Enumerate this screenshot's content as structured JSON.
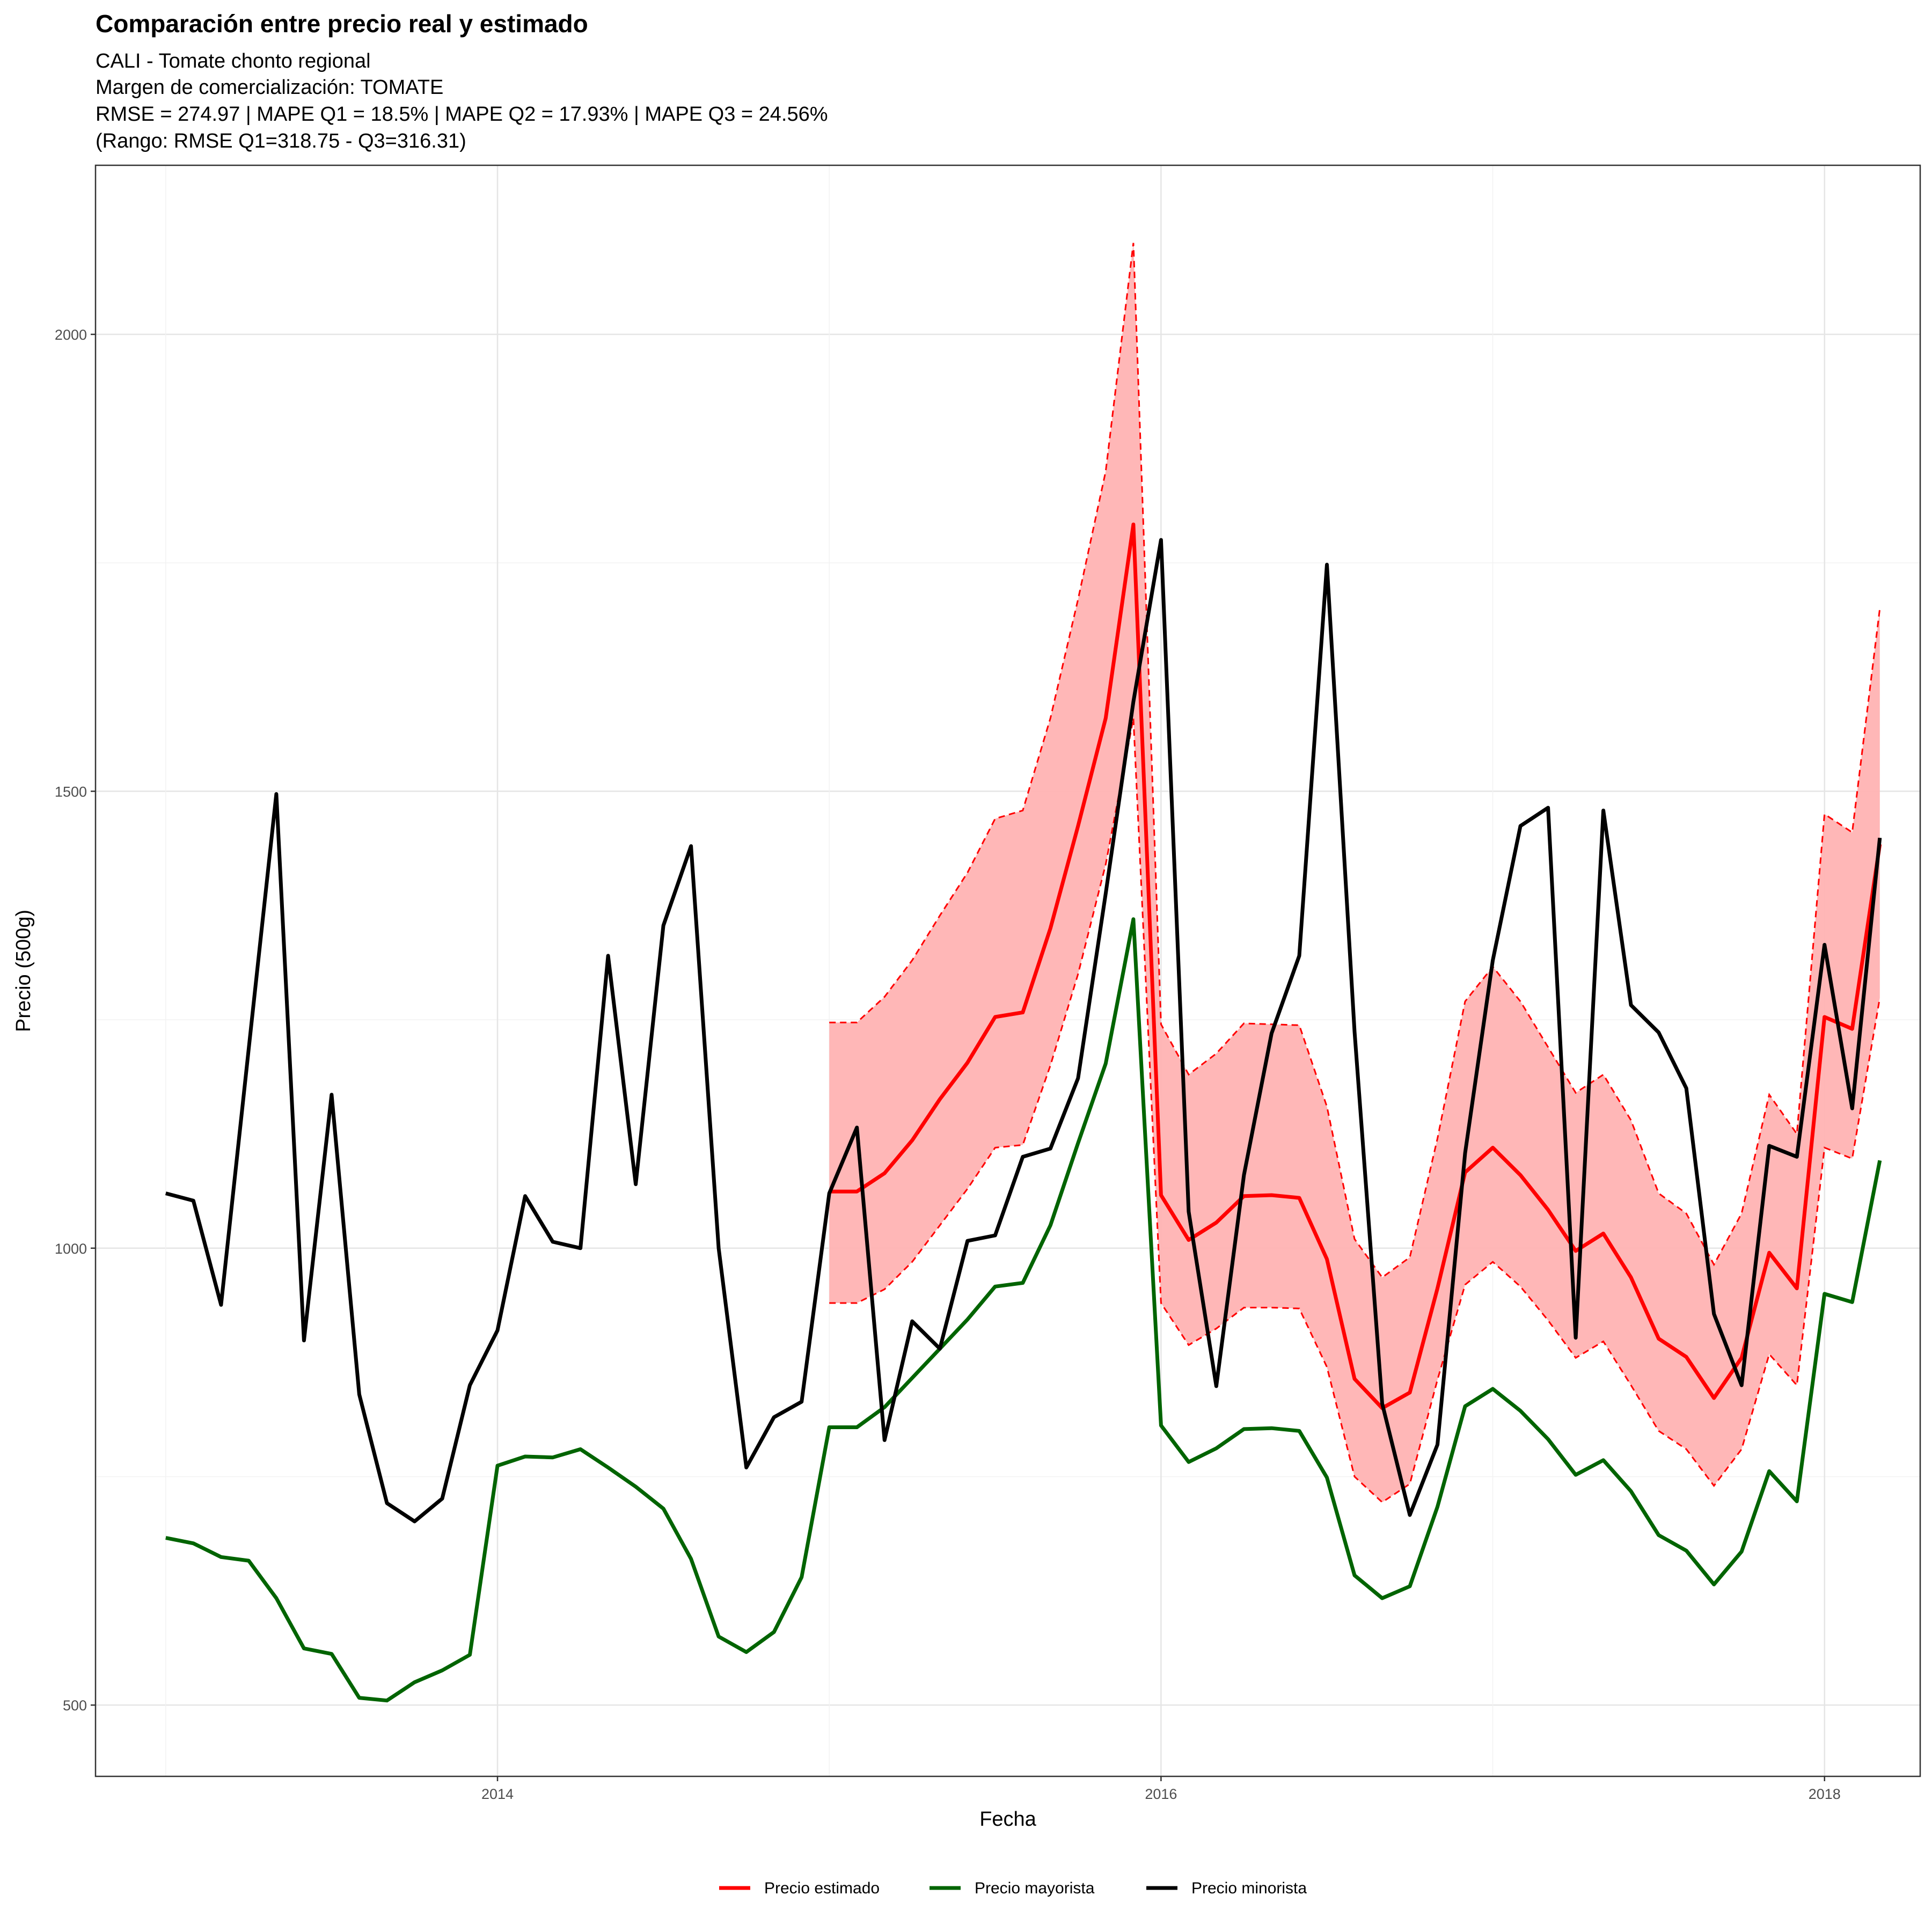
{
  "chart_data": {
    "type": "line",
    "title": "Comparación entre precio real y estimado",
    "subtitle": [
      "CALI - Tomate chonto regional",
      "Margen de comercialización: TOMATE",
      "RMSE = 274.97 | MAPE Q1 = 18.5% | MAPE Q2 = 17.93% | MAPE Q3 = 24.56%",
      "(Rango: RMSE Q1=318.75 - Q3=316.31)"
    ],
    "xlabel": "Fecha",
    "ylabel": "Precio (500g)",
    "x_ticks": [
      "2014",
      "2016",
      "2018"
    ],
    "y_ticks": [
      500,
      1000,
      1500,
      2000
    ],
    "ylim": [
      422,
      2185
    ],
    "xlim": [
      "2012-10-15",
      "2018-04-15"
    ],
    "grid": true,
    "legend_position": "bottom",
    "colors": {
      "estimado": "#ff0000",
      "mayorista": "#006400",
      "minorista": "#000000",
      "band_fill": "#ffb3b3"
    },
    "series": [
      {
        "name": "Precio minorista",
        "color": "#000000",
        "x": [
          "2013-01",
          "2013-02",
          "2013-03",
          "2013-04",
          "2013-05",
          "2013-06",
          "2013-07",
          "2013-08",
          "2013-09",
          "2013-10",
          "2013-11",
          "2013-12",
          "2014-01",
          "2014-02",
          "2014-03",
          "2014-04",
          "2014-05",
          "2014-06",
          "2014-07",
          "2014-08",
          "2014-09",
          "2014-10",
          "2014-11",
          "2014-12",
          "2015-01",
          "2015-02",
          "2015-03",
          "2015-04",
          "2015-05",
          "2015-06",
          "2015-07",
          "2015-08",
          "2015-09",
          "2015-10",
          "2015-11",
          "2015-12",
          "2016-01",
          "2016-02",
          "2016-03",
          "2016-04",
          "2016-05",
          "2016-06",
          "2016-07",
          "2016-08",
          "2016-09",
          "2016-10",
          "2016-11",
          "2016-12",
          "2017-01",
          "2017-02",
          "2017-03",
          "2017-04",
          "2017-05",
          "2017-06",
          "2017-07",
          "2017-08",
          "2017-09",
          "2017-10",
          "2017-11",
          "2017-12",
          "2018-01",
          "2018-02",
          "2018-03"
        ],
        "values": [
          1060,
          1052,
          938,
          1218,
          1497,
          899,
          1168,
          840,
          721,
          701,
          726,
          850,
          910,
          1057,
          1007,
          1000,
          1320,
          1070,
          1353,
          1440,
          1000,
          760,
          815,
          832,
          1060,
          1132,
          790,
          920,
          890,
          1008,
          1014,
          1100,
          1109,
          1186,
          1388,
          1598,
          1775,
          1040,
          849,
          1080,
          1235,
          1320,
          1748,
          1237,
          830,
          708,
          785,
          1104,
          1315,
          1462,
          1482,
          902,
          1479,
          1266,
          1236,
          1175,
          928,
          850,
          1112,
          1100,
          1332,
          1153,
          1449
        ]
      },
      {
        "name": "Precio mayorista",
        "color": "#006400",
        "x": [
          "2013-01",
          "2013-02",
          "2013-03",
          "2013-04",
          "2013-05",
          "2013-06",
          "2013-07",
          "2013-08",
          "2013-09",
          "2013-10",
          "2013-11",
          "2013-12",
          "2014-01",
          "2014-02",
          "2014-03",
          "2014-04",
          "2014-05",
          "2014-06",
          "2014-07",
          "2014-08",
          "2014-09",
          "2014-10",
          "2014-11",
          "2014-12",
          "2015-01",
          "2015-02",
          "2015-03",
          "2015-04",
          "2015-05",
          "2015-06",
          "2015-07",
          "2015-08",
          "2015-09",
          "2015-10",
          "2015-11",
          "2015-12",
          "2016-01",
          "2016-02",
          "2016-03",
          "2016-04",
          "2016-05",
          "2016-06",
          "2016-07",
          "2016-08",
          "2016-09",
          "2016-10",
          "2016-11",
          "2016-12",
          "2017-01",
          "2017-02",
          "2017-03",
          "2017-04",
          "2017-05",
          "2017-06",
          "2017-07",
          "2017-08",
          "2017-09",
          "2017-10",
          "2017-11",
          "2017-12",
          "2018-01",
          "2018-02",
          "2018-03"
        ],
        "values": [
          683,
          677,
          662,
          658,
          617,
          562,
          556,
          508,
          505,
          525,
          538,
          555,
          762,
          772,
          771,
          780,
          760,
          739,
          715,
          660,
          575,
          558,
          580,
          640,
          804,
          804,
          826,
          858,
          890,
          922,
          958,
          962,
          1025,
          1115,
          1202,
          1360,
          806,
          766,
          781,
          802,
          803,
          800,
          749,
          642,
          617,
          630,
          717,
          827,
          846,
          822,
          791,
          752,
          768,
          734,
          686,
          669,
          632,
          668,
          756,
          723,
          950,
          941,
          1096
        ]
      },
      {
        "name": "Precio estimado",
        "color": "#ff0000",
        "x": [
          "2015-01",
          "2015-02",
          "2015-03",
          "2015-04",
          "2015-05",
          "2015-06",
          "2015-07",
          "2015-08",
          "2015-09",
          "2015-10",
          "2015-11",
          "2015-12",
          "2016-01",
          "2016-02",
          "2016-03",
          "2016-04",
          "2016-05",
          "2016-06",
          "2016-07",
          "2016-08",
          "2016-09",
          "2016-10",
          "2016-11",
          "2016-12",
          "2017-01",
          "2017-02",
          "2017-03",
          "2017-04",
          "2017-05",
          "2017-06",
          "2017-07",
          "2017-08",
          "2017-09",
          "2017-10",
          "2017-11",
          "2017-12",
          "2018-01",
          "2018-02",
          "2018-03"
        ],
        "values": [
          1062,
          1062,
          1082,
          1118,
          1163,
          1203,
          1253,
          1258,
          1350,
          1462,
          1580,
          1792,
          1058,
          1009,
          1028,
          1057,
          1058,
          1055,
          988,
          857,
          825,
          842,
          956,
          1083,
          1110,
          1080,
          1042,
          997,
          1016,
          968,
          901,
          881,
          836,
          880,
          995,
          956,
          1253,
          1240,
          1442
        ],
        "lower": [
          940,
          940,
          955,
          985,
          1025,
          1065,
          1110,
          1113,
          1200,
          1300,
          1420,
          1580,
          940,
          894,
          912,
          935,
          935,
          934,
          870,
          750,
          722,
          742,
          856,
          960,
          985,
          958,
          921,
          880,
          898,
          850,
          800,
          780,
          740,
          780,
          884,
          850,
          1110,
          1098,
          1274
        ],
        "upper": [
          1247,
          1247,
          1275,
          1315,
          1364,
          1411,
          1470,
          1479,
          1580,
          1710,
          1850,
          2100,
          1245,
          1190,
          1213,
          1246,
          1245,
          1244,
          1155,
          1010,
          968,
          990,
          1120,
          1270,
          1308,
          1270,
          1220,
          1170,
          1190,
          1140,
          1060,
          1038,
          982,
          1038,
          1168,
          1125,
          1475,
          1455,
          1700
        ]
      }
    ],
    "legend": [
      {
        "label": "Precio estimado",
        "color": "#ff0000"
      },
      {
        "label": "Precio mayorista",
        "color": "#006400"
      },
      {
        "label": "Precio minorista",
        "color": "#000000"
      }
    ]
  }
}
